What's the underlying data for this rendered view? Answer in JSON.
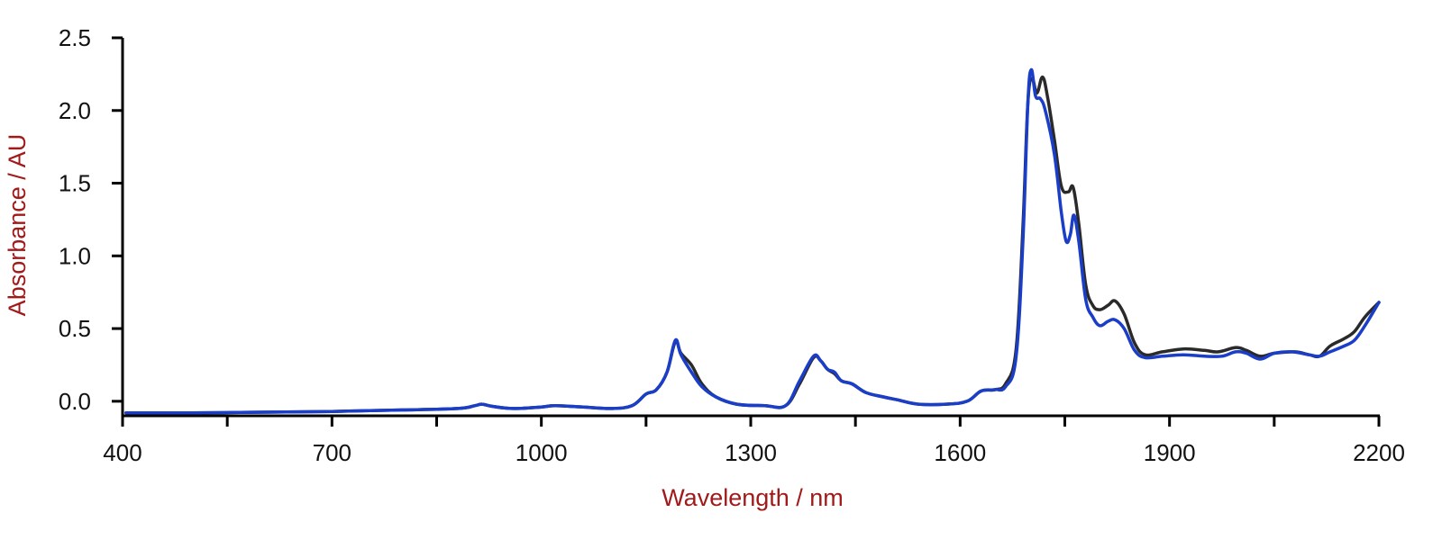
{
  "chart_data": {
    "type": "line",
    "xlabel": "Wavelength / nm",
    "ylabel": "Absorbance / AU",
    "xlim": [
      400,
      2200
    ],
    "ylim": [
      -0.1,
      2.5
    ],
    "x_ticks": [
      400,
      700,
      1000,
      1300,
      1600,
      1900,
      2200
    ],
    "x_minor_ticks": [
      550,
      850,
      1150,
      1450,
      1750,
      2050
    ],
    "y_ticks": [
      0.0,
      0.5,
      1.0,
      1.5,
      2.0,
      2.5
    ],
    "x_tick_labels": [
      "400",
      "700",
      "1000",
      "1300",
      "1600",
      "1900",
      "2200"
    ],
    "y_tick_labels": [
      "0.0",
      "0.5",
      "1.0",
      "1.5",
      "2.0",
      "2.5"
    ],
    "grid": false,
    "label_color": "#a01a1a",
    "series": [
      {
        "color": "#2a2a2a",
        "points": [
          [
            405,
            -0.08
          ],
          [
            500,
            -0.08
          ],
          [
            600,
            -0.075
          ],
          [
            700,
            -0.07
          ],
          [
            800,
            -0.06
          ],
          [
            880,
            -0.05
          ],
          [
            905,
            -0.03
          ],
          [
            915,
            -0.02
          ],
          [
            930,
            -0.035
          ],
          [
            960,
            -0.05
          ],
          [
            1000,
            -0.04
          ],
          [
            1020,
            -0.03
          ],
          [
            1060,
            -0.04
          ],
          [
            1100,
            -0.05
          ],
          [
            1130,
            -0.03
          ],
          [
            1150,
            0.05
          ],
          [
            1165,
            0.08
          ],
          [
            1180,
            0.2
          ],
          [
            1192,
            0.41
          ],
          [
            1200,
            0.33
          ],
          [
            1215,
            0.25
          ],
          [
            1230,
            0.12
          ],
          [
            1250,
            0.03
          ],
          [
            1280,
            -0.02
          ],
          [
            1320,
            -0.03
          ],
          [
            1350,
            -0.03
          ],
          [
            1370,
            0.12
          ],
          [
            1390,
            0.3
          ],
          [
            1400,
            0.28
          ],
          [
            1410,
            0.22
          ],
          [
            1420,
            0.19
          ],
          [
            1430,
            0.14
          ],
          [
            1445,
            0.12
          ],
          [
            1465,
            0.06
          ],
          [
            1490,
            0.03
          ],
          [
            1510,
            0.01
          ],
          [
            1540,
            -0.02
          ],
          [
            1580,
            -0.02
          ],
          [
            1610,
            0.0
          ],
          [
            1630,
            0.07
          ],
          [
            1650,
            0.08
          ],
          [
            1665,
            0.12
          ],
          [
            1680,
            0.35
          ],
          [
            1690,
            1.2
          ],
          [
            1697,
            2.05
          ],
          [
            1703,
            2.22
          ],
          [
            1710,
            2.12
          ],
          [
            1718,
            2.23
          ],
          [
            1725,
            2.1
          ],
          [
            1735,
            1.8
          ],
          [
            1745,
            1.48
          ],
          [
            1755,
            1.44
          ],
          [
            1762,
            1.47
          ],
          [
            1770,
            1.22
          ],
          [
            1780,
            0.8
          ],
          [
            1790,
            0.66
          ],
          [
            1800,
            0.63
          ],
          [
            1812,
            0.66
          ],
          [
            1822,
            0.69
          ],
          [
            1835,
            0.6
          ],
          [
            1850,
            0.4
          ],
          [
            1865,
            0.32
          ],
          [
            1890,
            0.34
          ],
          [
            1920,
            0.36
          ],
          [
            1950,
            0.35
          ],
          [
            1970,
            0.34
          ],
          [
            1995,
            0.37
          ],
          [
            2010,
            0.35
          ],
          [
            2030,
            0.31
          ],
          [
            2050,
            0.33
          ],
          [
            2080,
            0.34
          ],
          [
            2100,
            0.32
          ],
          [
            2115,
            0.31
          ],
          [
            2130,
            0.38
          ],
          [
            2150,
            0.43
          ],
          [
            2165,
            0.48
          ],
          [
            2180,
            0.58
          ],
          [
            2200,
            0.68
          ]
        ]
      },
      {
        "color": "#1a3ec8",
        "points": [
          [
            405,
            -0.08
          ],
          [
            500,
            -0.08
          ],
          [
            600,
            -0.075
          ],
          [
            700,
            -0.07
          ],
          [
            800,
            -0.06
          ],
          [
            880,
            -0.05
          ],
          [
            905,
            -0.03
          ],
          [
            915,
            -0.02
          ],
          [
            930,
            -0.035
          ],
          [
            960,
            -0.05
          ],
          [
            1000,
            -0.04
          ],
          [
            1020,
            -0.03
          ],
          [
            1060,
            -0.04
          ],
          [
            1100,
            -0.05
          ],
          [
            1130,
            -0.03
          ],
          [
            1150,
            0.05
          ],
          [
            1165,
            0.08
          ],
          [
            1180,
            0.2
          ],
          [
            1192,
            0.42
          ],
          [
            1200,
            0.32
          ],
          [
            1215,
            0.2
          ],
          [
            1230,
            0.1
          ],
          [
            1250,
            0.03
          ],
          [
            1280,
            -0.02
          ],
          [
            1320,
            -0.03
          ],
          [
            1350,
            -0.03
          ],
          [
            1370,
            0.14
          ],
          [
            1390,
            0.31
          ],
          [
            1400,
            0.28
          ],
          [
            1410,
            0.22
          ],
          [
            1420,
            0.2
          ],
          [
            1430,
            0.14
          ],
          [
            1445,
            0.12
          ],
          [
            1465,
            0.06
          ],
          [
            1490,
            0.03
          ],
          [
            1510,
            0.01
          ],
          [
            1540,
            -0.02
          ],
          [
            1580,
            -0.02
          ],
          [
            1610,
            0.0
          ],
          [
            1630,
            0.07
          ],
          [
            1650,
            0.08
          ],
          [
            1665,
            0.1
          ],
          [
            1680,
            0.3
          ],
          [
            1690,
            1.1
          ],
          [
            1697,
            2.05
          ],
          [
            1702,
            2.28
          ],
          [
            1708,
            2.1
          ],
          [
            1715,
            2.08
          ],
          [
            1722,
            2.0
          ],
          [
            1735,
            1.7
          ],
          [
            1745,
            1.3
          ],
          [
            1752,
            1.1
          ],
          [
            1758,
            1.15
          ],
          [
            1763,
            1.28
          ],
          [
            1770,
            1.1
          ],
          [
            1780,
            0.7
          ],
          [
            1790,
            0.58
          ],
          [
            1800,
            0.52
          ],
          [
            1812,
            0.55
          ],
          [
            1822,
            0.56
          ],
          [
            1835,
            0.5
          ],
          [
            1850,
            0.35
          ],
          [
            1865,
            0.3
          ],
          [
            1890,
            0.31
          ],
          [
            1920,
            0.32
          ],
          [
            1950,
            0.31
          ],
          [
            1975,
            0.31
          ],
          [
            1995,
            0.34
          ],
          [
            2010,
            0.33
          ],
          [
            2030,
            0.29
          ],
          [
            2050,
            0.33
          ],
          [
            2075,
            0.34
          ],
          [
            2100,
            0.32
          ],
          [
            2115,
            0.31
          ],
          [
            2130,
            0.34
          ],
          [
            2150,
            0.38
          ],
          [
            2165,
            0.42
          ],
          [
            2180,
            0.52
          ],
          [
            2200,
            0.68
          ]
        ]
      }
    ]
  }
}
